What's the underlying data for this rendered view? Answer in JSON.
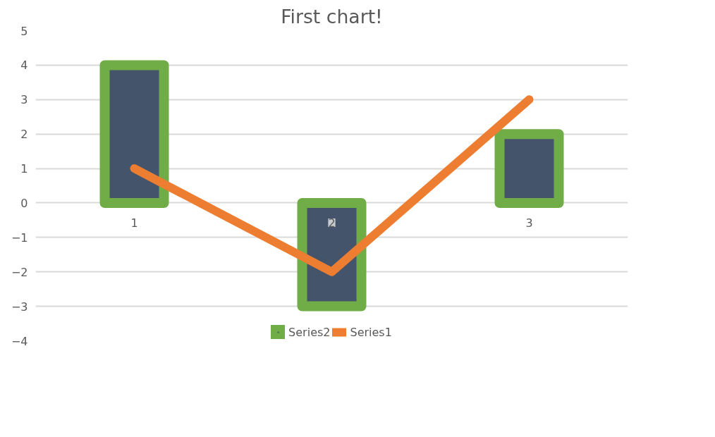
{
  "chart_data": {
    "type": "bar",
    "title": "First chart!",
    "categories": [
      "1",
      "2",
      "3"
    ],
    "series": [
      {
        "name": "Series2",
        "color": "#44546a",
        "values": [
          4,
          -3,
          2
        ]
      },
      {
        "name": "Series1",
        "type": "line",
        "color": "#ed7d31",
        "values": [
          1,
          -2,
          3
        ]
      }
    ],
    "ylim": [
      -4,
      5
    ],
    "yticks": [
      -4,
      -3,
      -2,
      -1,
      0,
      1,
      2,
      3,
      4,
      5
    ],
    "grid": "y",
    "legend": "bottom",
    "marker": "none",
    "line_style": "solid"
  }
}
